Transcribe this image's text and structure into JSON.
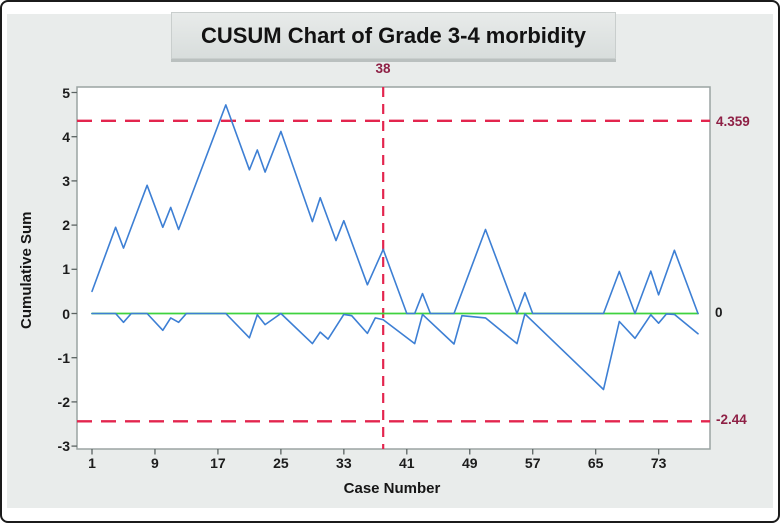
{
  "title": "CUSUM Chart of Grade 3-4 morbidity",
  "colors": {
    "line_blue": "#3d7fd4",
    "center_green": "#3fd23f",
    "limit_red": "#e3254e",
    "annotation_red": "#8e2045",
    "frame_gray": "#9aa3a2"
  },
  "chart_data": {
    "type": "line",
    "title": "CUSUM Chart of Grade 3-4 morbidity",
    "xlabel": "Case Number",
    "ylabel": "Cumulative Sum",
    "x_ticks": [
      1,
      9,
      17,
      25,
      33,
      41,
      49,
      57,
      65,
      73
    ],
    "y_ticks": [
      5,
      4,
      3,
      2,
      1,
      0,
      -1,
      -2,
      -3
    ],
    "xlim": [
      -1,
      80
    ],
    "ylim": [
      -3.1,
      5.1
    ],
    "grid": "off",
    "legend": "none",
    "ucl": 4.359,
    "lcl": -2.44,
    "center_value": 0,
    "ucl_label": "4.359",
    "center_label": "0",
    "lcl_label": "-2.44",
    "signal_case": 38,
    "signal_label": "38",
    "series": [
      {
        "name": "center-line",
        "color": "#3fd23f",
        "width": 1.8,
        "points": [
          [
            1,
            0
          ],
          [
            78,
            0
          ]
        ]
      },
      {
        "name": "lower-cusum",
        "color": "#3d7fd4",
        "width": 1.6,
        "points": [
          [
            1,
            0
          ],
          [
            4,
            0
          ],
          [
            5,
            -0.2
          ],
          [
            6,
            0
          ],
          [
            8,
            0
          ],
          [
            10,
            -0.38
          ],
          [
            11,
            -0.1
          ],
          [
            12,
            -0.2
          ],
          [
            13,
            0
          ],
          [
            18,
            0
          ],
          [
            21,
            -0.55
          ],
          [
            22,
            -0.03
          ],
          [
            23,
            -0.25
          ],
          [
            25,
            0
          ],
          [
            29,
            -0.68
          ],
          [
            30,
            -0.42
          ],
          [
            31,
            -0.58
          ],
          [
            33,
            -0.02
          ],
          [
            34,
            -0.05
          ],
          [
            36,
            -0.45
          ],
          [
            37,
            -0.1
          ],
          [
            38,
            -0.14
          ],
          [
            42,
            -0.68
          ],
          [
            43,
            -0.02
          ],
          [
            47,
            -0.69
          ],
          [
            48,
            -0.05
          ],
          [
            51,
            -0.1
          ],
          [
            55,
            -0.68
          ],
          [
            56,
            -0.01
          ],
          [
            66,
            -1.72
          ],
          [
            68,
            -0.18
          ],
          [
            70,
            -0.56
          ],
          [
            72,
            -0.03
          ],
          [
            73,
            -0.22
          ],
          [
            74,
            -0.01
          ],
          [
            75,
            -0.02
          ],
          [
            78,
            -0.46
          ]
        ]
      },
      {
        "name": "upper-cusum",
        "color": "#3d7fd4",
        "width": 1.6,
        "points": [
          [
            1,
            0.5
          ],
          [
            4,
            1.95
          ],
          [
            5,
            1.48
          ],
          [
            8,
            2.9
          ],
          [
            10,
            1.95
          ],
          [
            11,
            2.4
          ],
          [
            12,
            1.9
          ],
          [
            18,
            4.72
          ],
          [
            21,
            3.25
          ],
          [
            22,
            3.7
          ],
          [
            23,
            3.2
          ],
          [
            25,
            4.12
          ],
          [
            29,
            2.08
          ],
          [
            30,
            2.62
          ],
          [
            32,
            1.65
          ],
          [
            33,
            2.1
          ],
          [
            36,
            0.65
          ],
          [
            38,
            1.45
          ],
          [
            41,
            0
          ],
          [
            42,
            0
          ],
          [
            43,
            0.45
          ],
          [
            44,
            0
          ],
          [
            47,
            0
          ],
          [
            51,
            1.9
          ],
          [
            55,
            0
          ],
          [
            56,
            0.47
          ],
          [
            57,
            0
          ],
          [
            66,
            0
          ],
          [
            68,
            0.95
          ],
          [
            70,
            0
          ],
          [
            72,
            0.96
          ],
          [
            73,
            0.42
          ],
          [
            75,
            1.43
          ],
          [
            78,
            0
          ]
        ]
      }
    ]
  }
}
